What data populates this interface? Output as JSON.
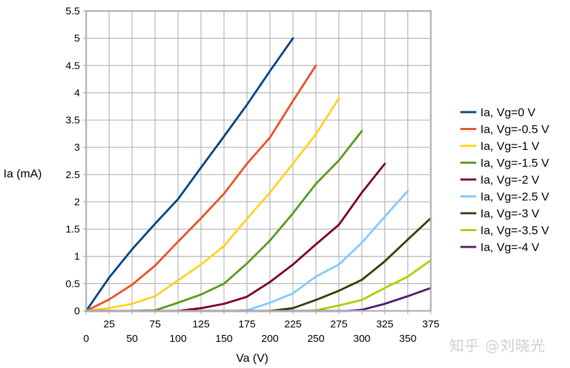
{
  "chart_data": {
    "type": "line",
    "title": "",
    "xlabel": "Va (V)",
    "ylabel": "Ia (mA)",
    "xlim": [
      0,
      375
    ],
    "ylim": [
      0,
      5.5
    ],
    "x_ticks": [
      0,
      25,
      50,
      75,
      100,
      125,
      150,
      175,
      200,
      225,
      250,
      275,
      300,
      325,
      350,
      375
    ],
    "y_ticks": [
      0,
      0.5,
      1,
      1.5,
      2,
      2.5,
      3,
      3.5,
      4,
      4.5,
      5,
      5.5
    ],
    "grid": true,
    "legend_position": "right",
    "series": [
      {
        "name": "Ia, Vg=0 V",
        "color": "#004586",
        "x": [
          0,
          25,
          50,
          75,
          100,
          125,
          150,
          175,
          200,
          225
        ],
        "y": [
          0,
          0.61,
          1.13,
          1.6,
          2.05,
          2.63,
          3.2,
          3.78,
          4.4,
          5.0
        ]
      },
      {
        "name": "Ia, Vg=-0.5 V",
        "color": "#e8532b",
        "x": [
          0,
          25,
          50,
          75,
          100,
          125,
          150,
          175,
          200,
          225,
          250
        ],
        "y": [
          0,
          0.21,
          0.48,
          0.83,
          1.27,
          1.7,
          2.15,
          2.7,
          3.18,
          3.85,
          4.5
        ]
      },
      {
        "name": "Ia, Vg=-1 V",
        "color": "#ffd320",
        "x": [
          0,
          25,
          50,
          75,
          100,
          125,
          150,
          175,
          200,
          225,
          250,
          275
        ],
        "y": [
          0,
          0.05,
          0.13,
          0.27,
          0.56,
          0.85,
          1.19,
          1.69,
          2.17,
          2.7,
          3.24,
          3.9
        ]
      },
      {
        "name": "Ia, Vg=-1.5 V",
        "color": "#579d1c",
        "x": [
          0,
          50,
          75,
          100,
          125,
          150,
          175,
          200,
          225,
          250,
          275,
          300
        ],
        "y": [
          0,
          0,
          0.01,
          0.15,
          0.3,
          0.5,
          0.87,
          1.29,
          1.79,
          2.33,
          2.76,
          3.3
        ]
      },
      {
        "name": "Ia, Vg=-2 V",
        "color": "#7e0021",
        "x": [
          0,
          100,
          125,
          150,
          175,
          200,
          225,
          250,
          275,
          300,
          325
        ],
        "y": [
          0,
          0,
          0.05,
          0.13,
          0.26,
          0.53,
          0.85,
          1.22,
          1.58,
          2.17,
          2.7
        ]
      },
      {
        "name": "Ia, Vg=-2.5 V",
        "color": "#83caff",
        "x": [
          0,
          160,
          175,
          200,
          225,
          250,
          275,
          300,
          325,
          350
        ],
        "y": [
          0,
          0,
          0.01,
          0.15,
          0.32,
          0.63,
          0.85,
          1.25,
          1.73,
          2.2
        ]
      },
      {
        "name": "Ia, Vg=-3 V",
        "color": "#314004",
        "x": [
          0,
          200,
          225,
          250,
          275,
          300,
          325,
          350,
          375
        ],
        "y": [
          0,
          0,
          0.05,
          0.2,
          0.37,
          0.57,
          0.91,
          1.31,
          1.7
        ]
      },
      {
        "name": "Ia, Vg=-3.5 V",
        "color": "#aecf00",
        "x": [
          0,
          240,
          250,
          275,
          300,
          325,
          350,
          375
        ],
        "y": [
          0,
          0,
          0.01,
          0.1,
          0.2,
          0.42,
          0.63,
          0.93
        ]
      },
      {
        "name": "Ia, Vg=-4 V",
        "color": "#4b1f6f",
        "x": [
          0,
          285,
          300,
          325,
          350,
          375
        ],
        "y": [
          0,
          0,
          0.02,
          0.13,
          0.27,
          0.42
        ]
      }
    ]
  },
  "watermark": "知乎 @刘晓光"
}
